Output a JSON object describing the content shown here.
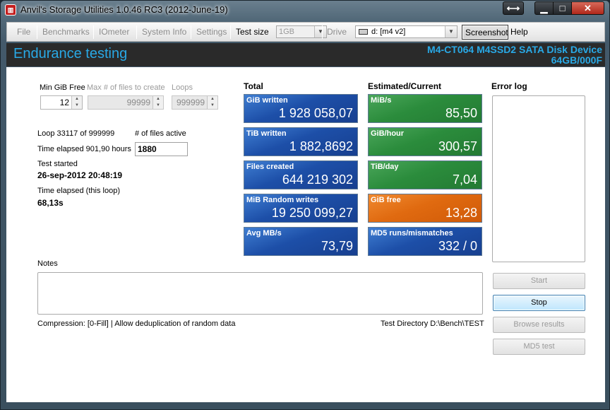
{
  "window": {
    "title": "Anvil's Storage Utilities 1.0.46 RC3 (2012-June-19)",
    "app_icon": "anvil-logo-icon"
  },
  "menu": {
    "file": "File",
    "benchmarks": "Benchmarks",
    "iometer": "IOmeter",
    "system_info": "System Info",
    "settings": "Settings",
    "test_size_label": "Test size",
    "test_size_value": "1GB",
    "drive_label": "Drive",
    "drive_value": "d: [m4 v2]",
    "screenshot": "Screenshot",
    "help": "Help"
  },
  "header": {
    "title": "Endurance testing",
    "device_name": "M4-CT064 M4SSD2 SATA Disk Device",
    "device_info": "64GB/000F"
  },
  "settings": {
    "min_gib_free_label": "Min GiB Free",
    "min_gib_free_value": "12",
    "max_files_label": "Max # of files to create",
    "max_files_value": "99999",
    "loops_label": "Loops",
    "loops_value": "999999"
  },
  "status": {
    "loop": "Loop 33117 of 999999",
    "files_active_label": "# of files active",
    "files_active_value": "1880",
    "time_elapsed": "Time elapsed 901,90 hours",
    "test_started_label": "Test started",
    "test_started_value": "26-sep-2012 20:48:19",
    "loop_elapsed_label": "Time elapsed (this loop)",
    "loop_elapsed_value": "68,13s"
  },
  "columns": {
    "total": "Total",
    "estimated": "Estimated/Current",
    "error_log": "Error log"
  },
  "total_tiles": [
    {
      "label": "GiB written",
      "value": "1 928 058,07"
    },
    {
      "label": "TiB written",
      "value": "1 882,8692"
    },
    {
      "label": "Files created",
      "value": "644 219 302"
    },
    {
      "label": "MiB Random writes",
      "value": "19 250 099,27"
    },
    {
      "label": "Avg MB/s",
      "value": "73,79"
    }
  ],
  "estimated_tiles": [
    {
      "label": "MiB/s",
      "value": "85,50"
    },
    {
      "label": "GiB/hour",
      "value": "300,57"
    },
    {
      "label": "TiB/day",
      "value": "7,04"
    },
    {
      "label": "GiB free",
      "value": "13,28"
    },
    {
      "label": "MD5 runs/mismatches",
      "value": "332 / 0"
    }
  ],
  "notes_label": "Notes",
  "footer": {
    "compression": "Compression: [0-Fill]  | Allow deduplication of random data",
    "test_directory": "Test Directory D:\\Bench\\TEST"
  },
  "buttons": {
    "start": "Start",
    "stop": "Stop",
    "browse": "Browse results",
    "md5": "MD5 test"
  },
  "colors": {
    "accent": "#29a9e6",
    "tile_blue": "#1d4fa8",
    "tile_green": "#2b8c3c",
    "tile_orange": "#e06a10"
  }
}
